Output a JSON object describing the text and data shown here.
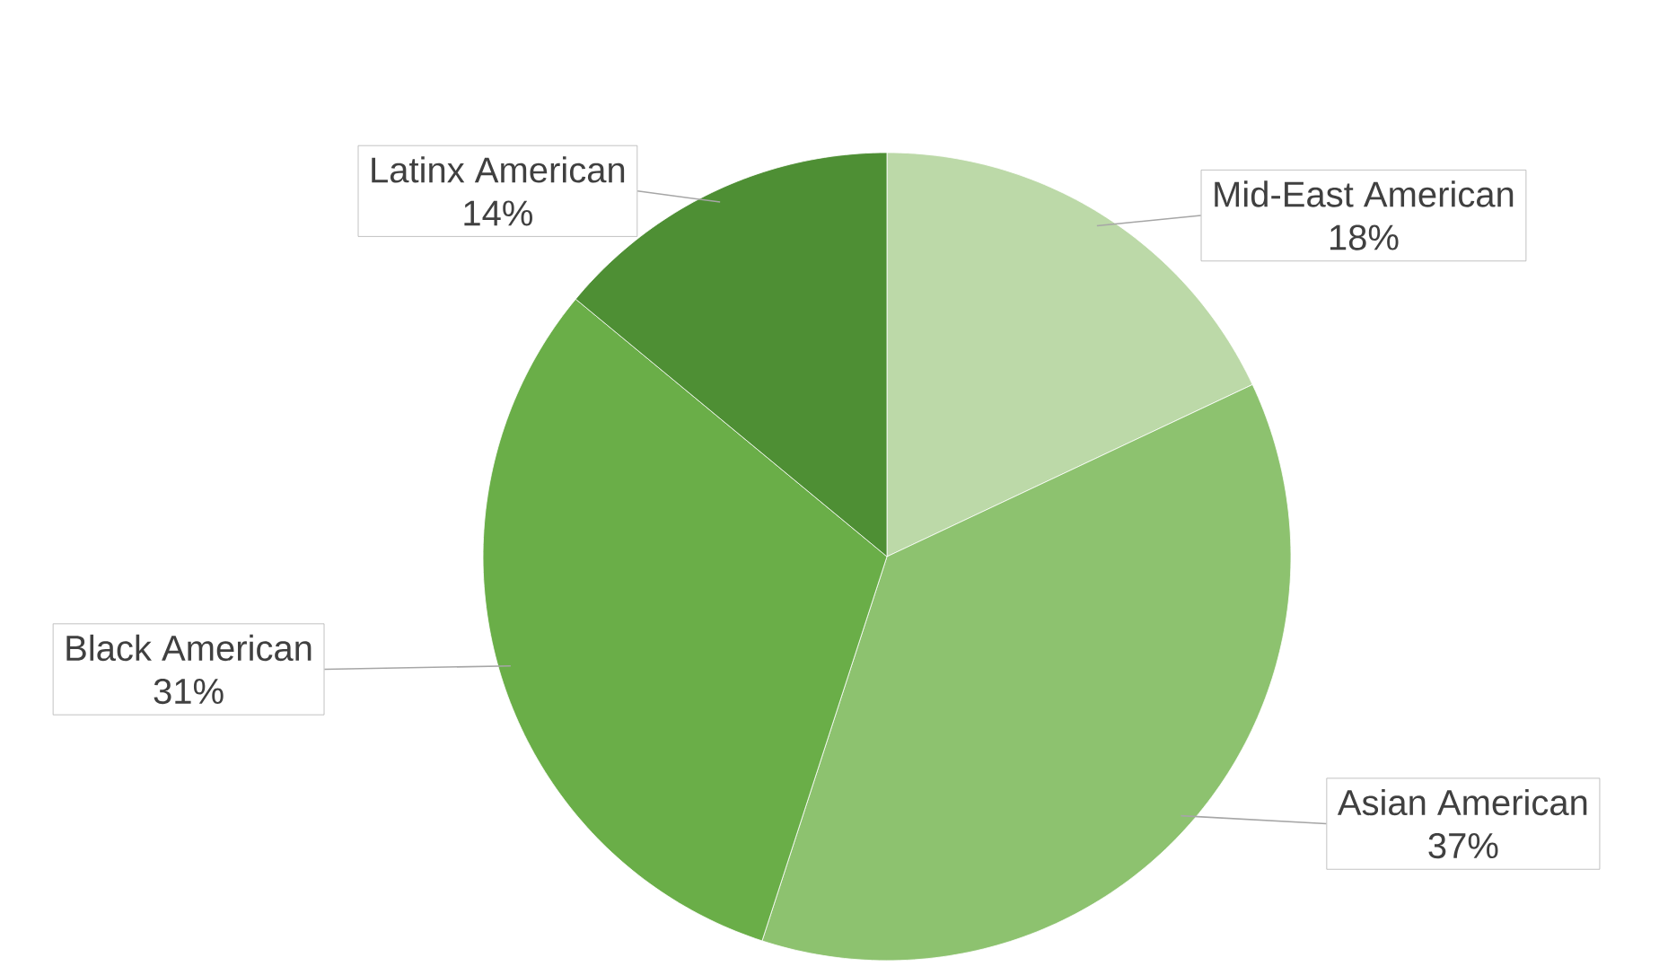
{
  "chart_data": {
    "type": "pie",
    "categories": [
      "Mid-East American",
      "Asian American",
      "Black American",
      "Latinx American"
    ],
    "values": [
      18,
      37,
      31,
      14
    ],
    "value_labels": [
      "18%",
      "37%",
      "31%",
      "14%"
    ],
    "colors": [
      "#bcd9a8",
      "#8dc26f",
      "#6aae48",
      "#4e8f34"
    ]
  }
}
